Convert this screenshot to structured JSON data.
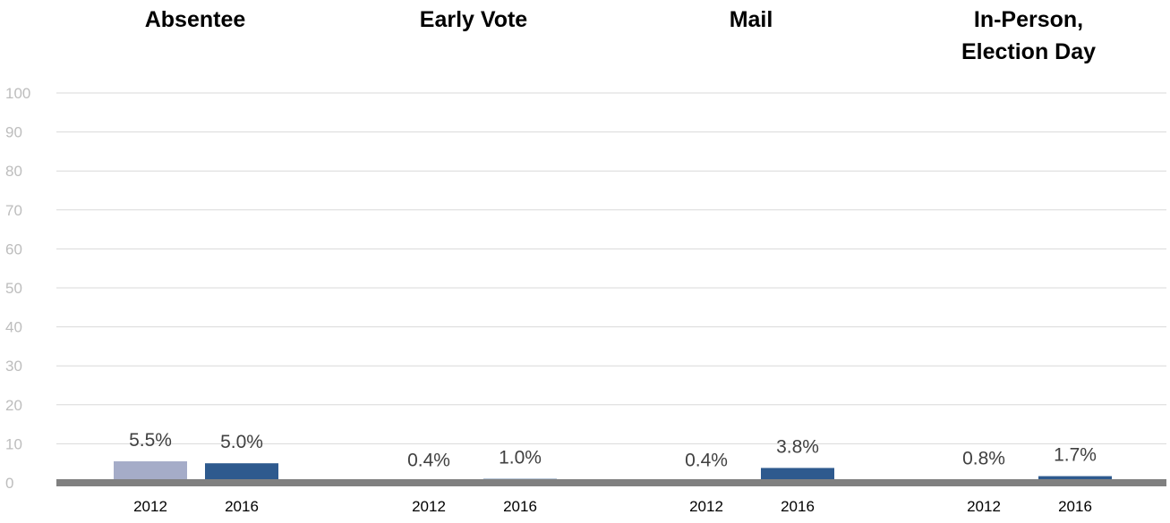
{
  "chart_data": {
    "type": "bar",
    "groups": [
      {
        "title_lines": [
          "Absentee"
        ],
        "categories": [
          "2012",
          "2016"
        ],
        "values": [
          5.5,
          5.0
        ],
        "labels": [
          "5.5%",
          "5.0%"
        ]
      },
      {
        "title_lines": [
          "Early Vote"
        ],
        "categories": [
          "2012",
          "2016"
        ],
        "values": [
          0.4,
          1.0
        ],
        "labels": [
          "0.4%",
          "1.0%"
        ]
      },
      {
        "title_lines": [
          "Mail"
        ],
        "categories": [
          "2012",
          "2016"
        ],
        "values": [
          0.4,
          3.8
        ],
        "labels": [
          "0.4%",
          "3.8%"
        ]
      },
      {
        "title_lines": [
          "In-Person,",
          "Election Day"
        ],
        "categories": [
          "2012",
          "2016"
        ],
        "values": [
          0.8,
          1.7
        ],
        "labels": [
          "0.8%",
          "1.7%"
        ]
      }
    ],
    "y_ticks": [
      "0",
      "10",
      "20",
      "30",
      "40",
      "50",
      "60",
      "70",
      "80",
      "90",
      "100"
    ],
    "ylim": [
      0,
      100
    ],
    "grid": true,
    "colors": {
      "2012": "#a5acc8",
      "2016": "#2e5a8e",
      "baseline": "#808080",
      "grid": "#d9d9d9"
    }
  }
}
